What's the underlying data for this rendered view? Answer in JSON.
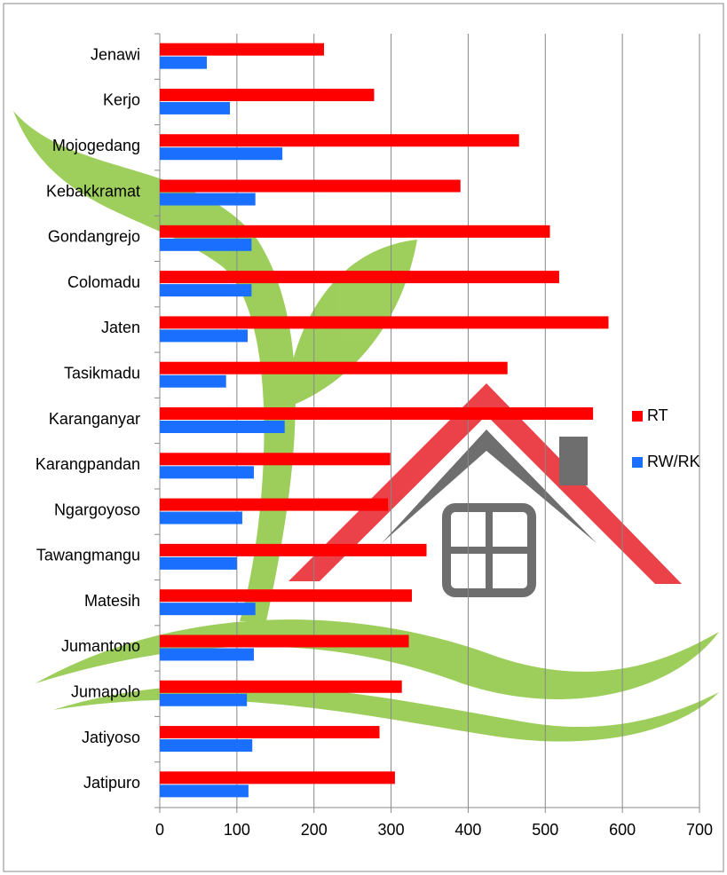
{
  "chart_data": {
    "type": "hbar",
    "categories": [
      "Jenawi",
      "Kerjo",
      "Mojogedang",
      "Kebakkramat",
      "Gondangrejo",
      "Colomadu",
      "Jaten",
      "Tasikmadu",
      "Karanganyar",
      "Karangpandan",
      "Ngargoyoso",
      "Tawangmangu",
      "Matesih",
      "Jumantono",
      "Jumapolo",
      "Jatiyoso",
      "Jatipuro"
    ],
    "series": [
      {
        "name": "RT",
        "color": "#ff0000",
        "values": [
          213,
          278,
          466,
          390,
          506,
          518,
          582,
          451,
          562,
          299,
          296,
          346,
          327,
          323,
          314,
          285,
          305
        ]
      },
      {
        "name": "RW/RK",
        "color": "#1a6fff",
        "values": [
          61,
          91,
          159,
          124,
          119,
          119,
          114,
          86,
          162,
          122,
          107,
          100,
          124,
          122,
          113,
          120,
          115
        ]
      }
    ],
    "xlim": [
      0,
      700
    ],
    "xticks": [
      0,
      100,
      200,
      300,
      400,
      500,
      600,
      700
    ],
    "grid": true,
    "legend": "right"
  }
}
